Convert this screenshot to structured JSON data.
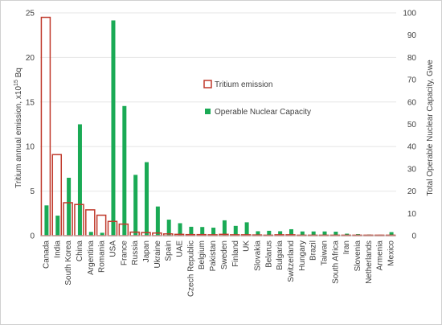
{
  "chart_data": {
    "type": "bar",
    "ylabel_left": "Tritium annual emission, x10",
    "ylabel_left_sup": "15",
    "ylabel_left_unit": " Bq",
    "ylabel_right": "Total Operable Nuclear Capacity, Gwe",
    "ylim_left": [
      0,
      25
    ],
    "ylim_right": [
      0,
      100
    ],
    "yticks_left": [
      "0",
      "5",
      "10",
      "15",
      "20",
      "25"
    ],
    "yticks_right": [
      "0",
      "10",
      "20",
      "30",
      "40",
      "50",
      "60",
      "70",
      "80",
      "90",
      "100"
    ],
    "legend_position": "center-right",
    "categories": [
      "Canada",
      "India",
      "South Korea",
      "China",
      "Argentina",
      "Romania",
      "USA",
      "France",
      "Russia",
      "Japan",
      "Ukraine",
      "Spain",
      "UAE",
      "Czech Republic",
      "Belgium",
      "Pakistan",
      "Sweden",
      "Finland",
      "UK",
      "Slovakia",
      "Belarus",
      "Bulgaria",
      "Switzerland",
      "Hungary",
      "Brazil",
      "Taiwan",
      "South Africa",
      "Iran",
      "Slovenia",
      "Netherlands",
      "Armenia",
      "Mexico"
    ],
    "series": [
      {
        "name": "Tritium emission",
        "axis": "left",
        "style": "outline",
        "color": "#C0392B",
        "values": [
          24.5,
          9.1,
          3.7,
          3.5,
          2.9,
          2.3,
          1.6,
          1.3,
          0.4,
          0.35,
          0.3,
          0.2,
          0.15,
          0.12,
          0.12,
          0.1,
          0.15,
          0.1,
          0.1,
          0.08,
          0.05,
          0.1,
          0.1,
          0.05,
          0.05,
          0.05,
          0.05,
          0.03,
          0.05,
          0.02,
          0.02,
          0.03
        ]
      },
      {
        "name": "Operable Nuclear Capacity",
        "axis": "right",
        "style": "filled",
        "color": "#1AAA55",
        "values": [
          13.6,
          9.0,
          26.0,
          50.0,
          1.7,
          1.3,
          96.6,
          58.2,
          27.3,
          33.0,
          13.1,
          7.2,
          5.6,
          4.0,
          3.9,
          3.6,
          6.9,
          4.4,
          6.0,
          2.0,
          2.2,
          2.0,
          2.9,
          1.9,
          1.9,
          1.9,
          1.8,
          0.9,
          0.7,
          0.5,
          0.4,
          1.6
        ]
      }
    ]
  }
}
